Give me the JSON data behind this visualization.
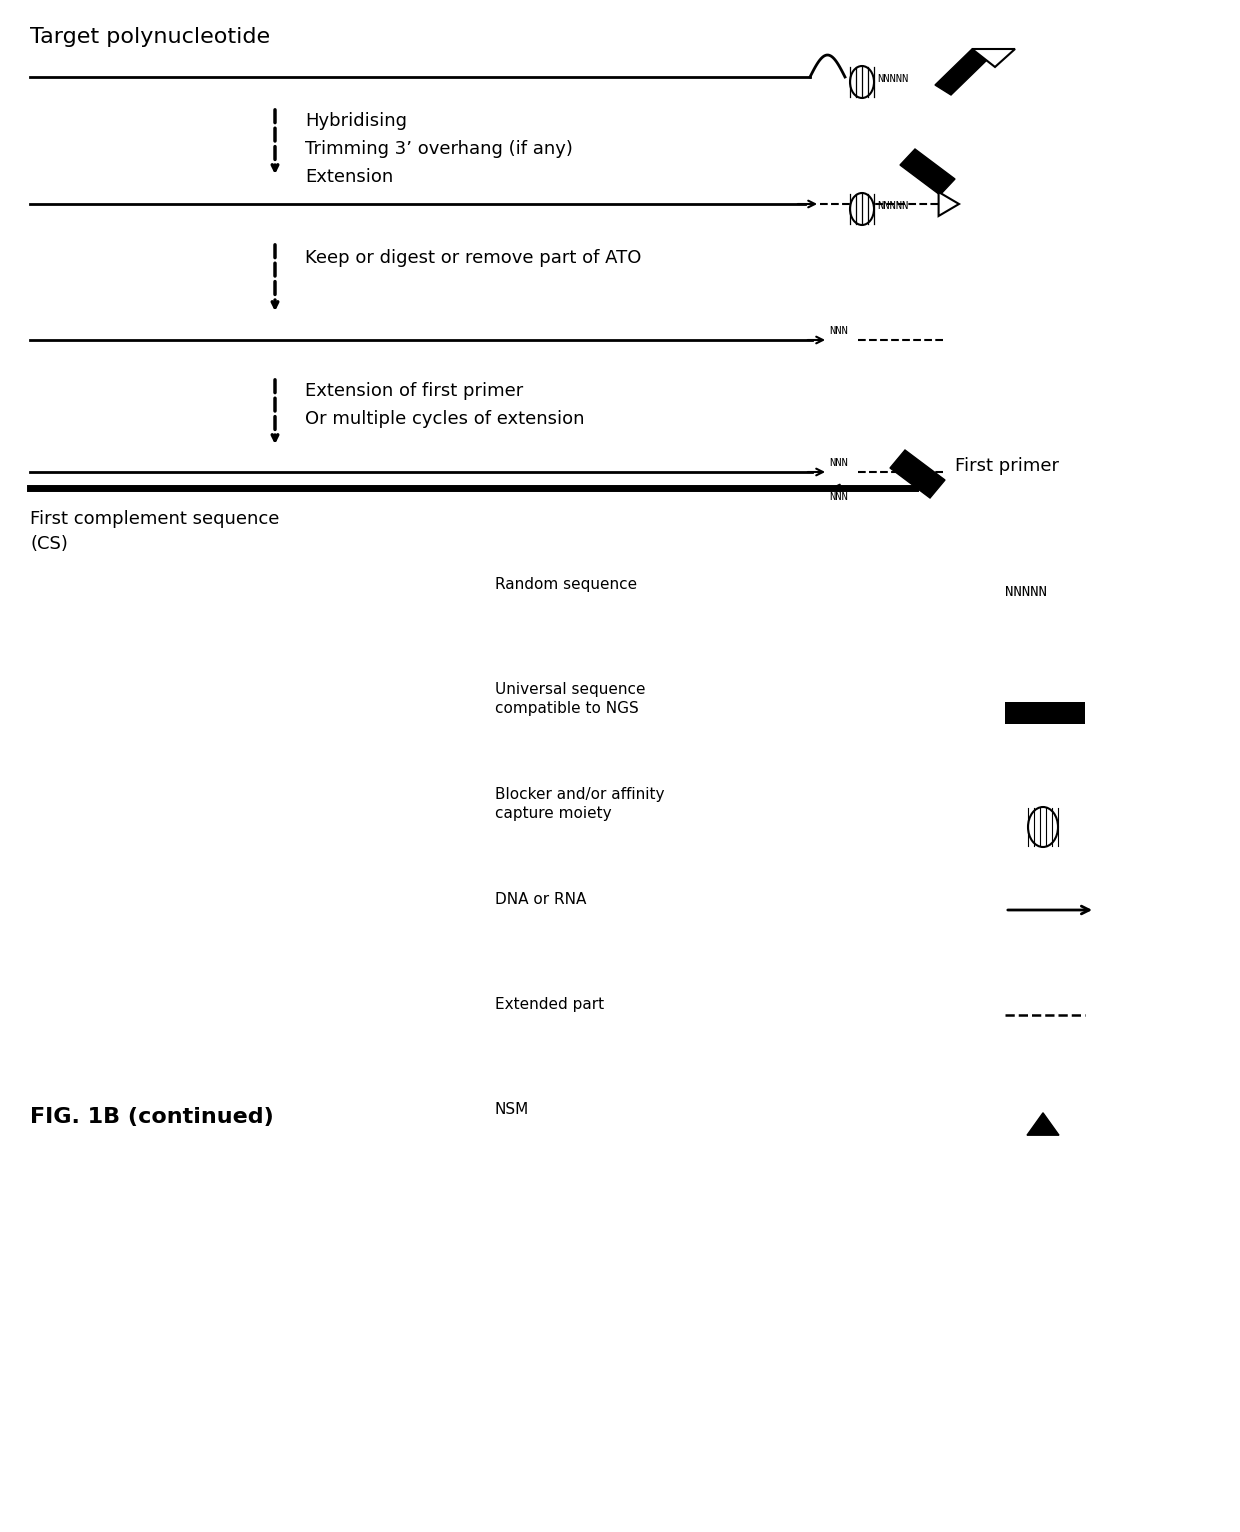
{
  "bg_color": "#ffffff",
  "fig_width": 12.4,
  "fig_height": 15.32,
  "title_text": "Target polynucleotide",
  "step1_label": "Hybridising\nTrimming 3’ overhang (if any)\nExtension",
  "step2_label": "Keep or digest or remove part of ATO",
  "step3_label": "Extension of first primer\nOr multiple cycles of extension",
  "label_first_complement": "First complement sequence\n(CS)",
  "label_first_primer": "First primer",
  "legend_random": "Random sequence",
  "legend_random_val": "NNNNN",
  "legend_universal": "Universal sequence\ncompatible to NGS",
  "legend_blocker": "Blocker and/or affinity\ncapture moiety",
  "legend_dna": "DNA or RNA",
  "legend_extended": "Extended part",
  "legend_nsm": "NSM",
  "fig_caption": "FIG. 1B (continued)"
}
